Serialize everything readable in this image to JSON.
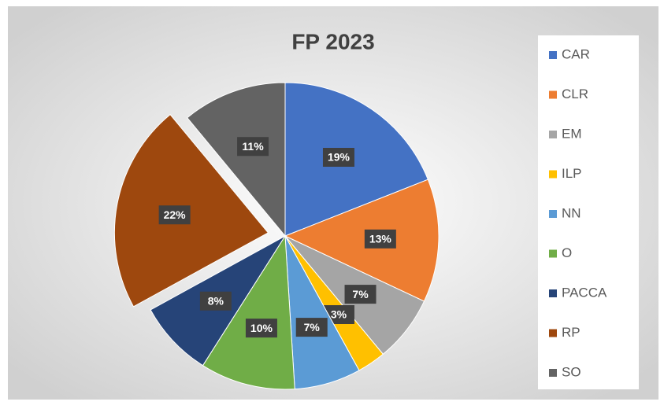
{
  "chart_data": {
    "type": "pie",
    "title": "FP 2023",
    "categories": [
      "CAR",
      "CLR",
      "EM",
      "ILP",
      "NN",
      "O",
      "PACCA",
      "RP",
      "SO"
    ],
    "values": [
      19,
      13,
      7,
      3,
      7,
      10,
      8,
      22,
      11
    ],
    "value_labels": [
      "19%",
      "13%",
      "7%",
      "3%",
      "7%",
      "10%",
      "8%",
      "22%",
      "11%"
    ],
    "colors": [
      "#4472c4",
      "#ed7d31",
      "#a5a5a5",
      "#ffc000",
      "#5b9bd5",
      "#70ad47",
      "#264478",
      "#9e480e",
      "#636363"
    ],
    "exploded": [
      "RP"
    ],
    "legend": "right"
  }
}
